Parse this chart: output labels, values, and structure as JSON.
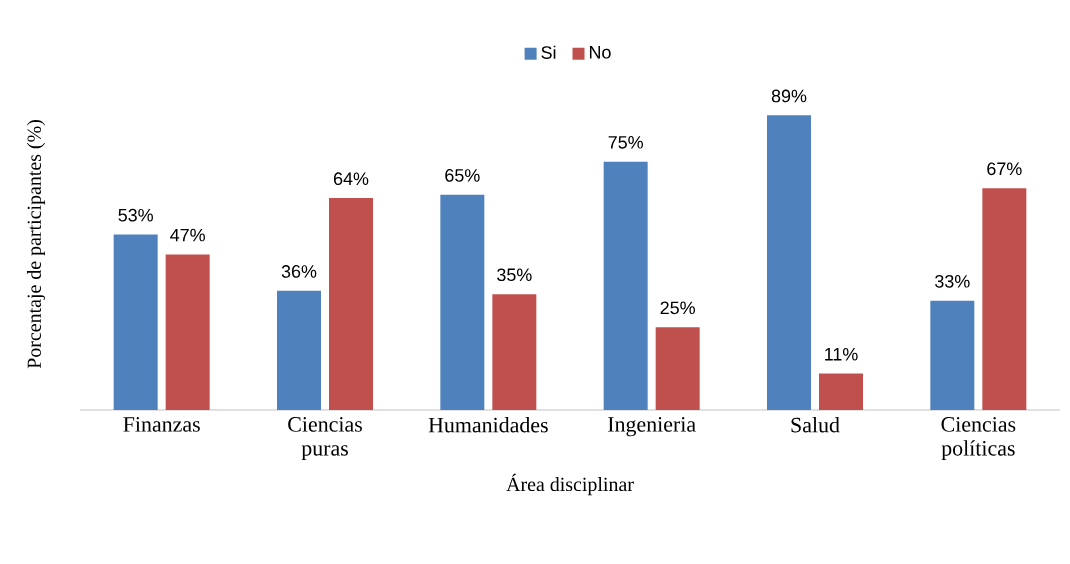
{
  "chart_data": {
    "type": "bar",
    "xlabel": "Área disciplinar",
    "ylabel": "Porcentaje de participantes (%)",
    "categories": [
      "Finanzas",
      "Ciencias puras",
      "Humanidades",
      "Ingenieria",
      "Salud",
      "Ciencias políticas"
    ],
    "series": [
      {
        "name": "Si",
        "color": "#4f81bd",
        "values": [
          53,
          36,
          65,
          75,
          89,
          33
        ],
        "value_labels": [
          "53%",
          "36%",
          "65%",
          "75%",
          "89%",
          "33%"
        ]
      },
      {
        "name": "No",
        "color": "#c0504d",
        "values": [
          47,
          64,
          35,
          25,
          11,
          67
        ],
        "value_labels": [
          "47%",
          "64%",
          "35%",
          "25%",
          "11%",
          "67%"
        ]
      }
    ],
    "legend": "top"
  }
}
